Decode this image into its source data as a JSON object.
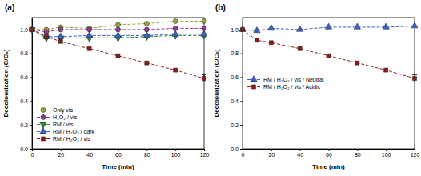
{
  "chart_data": [
    {
      "type": "line",
      "title": "(a)",
      "x_label": "Time (min)",
      "y_label": "Decolourization (C/C₀)",
      "x": [
        0,
        10,
        20,
        40,
        60,
        80,
        100,
        120
      ],
      "xlim": [
        0,
        120
      ],
      "xticks": [
        0,
        20,
        40,
        60,
        80,
        100,
        120
      ],
      "ylim": [
        0,
        1.1
      ],
      "yticks": [
        {
          "value": 0,
          "label": "0.0"
        },
        0.2,
        0.4,
        0.6,
        0.8,
        {
          "value": 1,
          "label": "1.0"
        }
      ],
      "legend": "lower left",
      "series": [
        {
          "name": "Only vis",
          "color": "#9ca33b",
          "marker": "circle",
          "line_style": "dashed",
          "values": [
            1.0,
            1.0,
            1.02,
            1.01,
            1.04,
            1.05,
            1.07,
            1.07
          ]
        },
        {
          "name": "H₂O₂ / vis",
          "color": "#8e3b8e",
          "marker": "circle",
          "line_style": "dashed",
          "values": [
            1.0,
            0.98,
            1.0,
            1.0,
            1.0,
            1.0,
            1.01,
            1.01
          ]
        },
        {
          "name": "RM / vis",
          "color": "#2f8a3a",
          "marker": "triangle-down",
          "line_style": "dashed",
          "values": [
            1.0,
            0.93,
            0.93,
            0.93,
            0.93,
            0.94,
            0.95,
            0.95
          ]
        },
        {
          "name": "RM / H₂O₂ / dark",
          "color": "#3a62c9",
          "marker": "triangle-up",
          "line_style": "dashed",
          "values": [
            1.0,
            0.94,
            0.94,
            0.95,
            0.95,
            0.95,
            0.96,
            0.96
          ]
        },
        {
          "name": "RM / H₂O₂ / vis",
          "color": "#8b1c1c",
          "marker": "square",
          "line_style": "dashed",
          "values": [
            1.0,
            0.94,
            0.9,
            0.84,
            0.78,
            0.72,
            0.66,
            0.59
          ],
          "errors": [
            null,
            null,
            null,
            null,
            null,
            null,
            null,
            0.03
          ]
        }
      ]
    },
    {
      "type": "line",
      "title": "(b)",
      "x_label": "Time (min)",
      "y_label": "Decolourization (C/C₀)",
      "x": [
        0,
        10,
        20,
        40,
        60,
        80,
        100,
        120
      ],
      "xlim": [
        0,
        120
      ],
      "xticks": [
        0,
        20,
        40,
        60,
        80,
        100,
        120
      ],
      "ylim": [
        0,
        1.1
      ],
      "yticks": [
        {
          "value": 0,
          "label": "0.0"
        },
        0.2,
        0.4,
        0.6,
        0.8,
        {
          "value": 1,
          "label": "1.0"
        }
      ],
      "legend": "center left",
      "series": [
        {
          "name": "RM / H₂O₂ / vis / Neutral",
          "color": "#3a62c9",
          "marker": "triangle-up",
          "line_style": "dashed",
          "values": [
            1.0,
            0.99,
            1.01,
            1.0,
            1.02,
            1.02,
            1.02,
            1.03
          ]
        },
        {
          "name": "RM / H₂O₂ / vis / Acidic",
          "color": "#8b1c1c",
          "marker": "square",
          "line_style": "dashed",
          "values": [
            1.0,
            0.91,
            0.89,
            0.84,
            0.78,
            0.72,
            0.66,
            0.59
          ],
          "errors": [
            null,
            null,
            null,
            null,
            null,
            null,
            null,
            0.03
          ]
        }
      ]
    }
  ]
}
